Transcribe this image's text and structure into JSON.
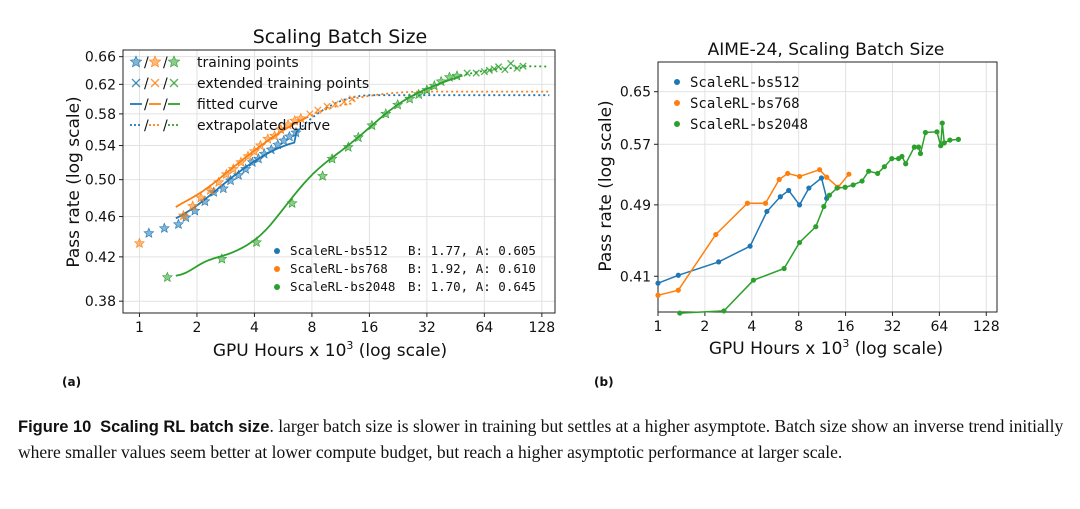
{
  "figure": {
    "caption_label": "Figure 10",
    "caption_title": "Scaling RL batch size",
    "caption_text": ". larger batch size is slower in training but settles at a higher asymptote. Batch size show an inverse trend initially where smaller values seem better at lower compute budget, but reach a higher asymptotic performance at larger scale."
  },
  "chart_data": [
    {
      "panel": "(a)",
      "type": "scatter",
      "title": "Scaling Batch Size",
      "xlabel": "GPU Hours x 10",
      "xlabel_sup": "3",
      "xlabel_suffix": " (log scale)",
      "ylabel": "Pass rate (log scale)",
      "xscale": "log",
      "yscale": "log",
      "xlim": [
        0.82,
        150
      ],
      "ylim": [
        0.37,
        0.67
      ],
      "xticks": [
        1,
        2,
        4,
        8,
        16,
        32,
        64,
        128
      ],
      "yticks": [
        0.38,
        0.42,
        0.46,
        0.5,
        0.54,
        0.58,
        0.62,
        0.66
      ],
      "ytick_labels": [
        "0.38",
        "0.42",
        "0.46",
        "0.50",
        "0.54",
        "0.58",
        "0.62",
        "0.66"
      ],
      "grid": true,
      "legend_style_pairs": [
        {
          "marker": "★/★/★",
          "label": "training points"
        },
        {
          "marker": "×/×/×",
          "label": "extended training points"
        },
        {
          "marker": "—/—/—",
          "label": "fitted curve"
        },
        {
          "marker": "--/--/--",
          "label": "extrapolated curve"
        }
      ],
      "series": [
        {
          "name": "ScaleRL-bs512",
          "params": "B: 1.77, A: 0.605",
          "color": "#1f77b4",
          "training_x": [
            1.12,
            1.35,
            1.6,
            1.75,
            1.95,
            2.2,
            2.45,
            2.75,
            3.0,
            3.3,
            3.6,
            3.9,
            4.2,
            4.5,
            4.9,
            5.3,
            5.7,
            6.1,
            6.6
          ],
          "training_y": [
            0.443,
            0.448,
            0.452,
            0.459,
            0.466,
            0.476,
            0.486,
            0.49,
            0.499,
            0.505,
            0.512,
            0.52,
            0.524,
            0.53,
            0.535,
            0.541,
            0.546,
            0.551,
            0.556
          ],
          "extended_x": [],
          "extended_y": [],
          "fit_x_range": [
            1.55,
            6.8
          ],
          "extrap_x_range": [
            6.8,
            140
          ],
          "A": 0.605
        },
        {
          "name": "ScaleRL-bs768",
          "params": "B: 1.92, A: 0.610",
          "color": "#ff7f0e",
          "training_x": [
            1.0,
            1.7,
            1.9,
            2.1,
            2.35,
            2.6,
            2.85,
            3.1,
            3.4,
            3.7,
            4.0,
            4.3,
            4.7,
            5.1,
            5.5,
            6.0,
            6.5,
            7.0
          ],
          "training_y": [
            0.433,
            0.461,
            0.471,
            0.48,
            0.488,
            0.497,
            0.506,
            0.512,
            0.52,
            0.527,
            0.533,
            0.54,
            0.548,
            0.552,
            0.56,
            0.566,
            0.571,
            0.574
          ],
          "extended_x": [
            7.8,
            8.6,
            9.6,
            10.6,
            11.8,
            13.0
          ],
          "extended_y": [
            0.58,
            0.585,
            0.59,
            0.593,
            0.596,
            0.6
          ],
          "fit_x_range": [
            1.55,
            7.5
          ],
          "extrap_x_range": [
            7.5,
            140
          ],
          "A": 0.61
        },
        {
          "name": "ScaleRL-bs2048",
          "params": "B: 1.70, A: 0.645",
          "color": "#2ca02c",
          "training_x": [
            1.4,
            2.7,
            4.1,
            6.3,
            9.1,
            10.2,
            12.4,
            14.0,
            16.5,
            19.5,
            22.5,
            26.0,
            29.0,
            32.0,
            35.0,
            38.0,
            42.0,
            46.0
          ],
          "training_y": [
            0.401,
            0.418,
            0.434,
            0.474,
            0.504,
            0.524,
            0.538,
            0.55,
            0.565,
            0.58,
            0.592,
            0.6,
            0.606,
            0.612,
            0.618,
            0.624,
            0.63,
            0.632
          ],
          "extended_x": [
            52,
            58,
            64,
            68,
            72,
            76,
            82,
            88,
            95,
            102
          ],
          "extended_y": [
            0.636,
            0.636,
            0.638,
            0.64,
            0.642,
            0.645,
            0.641,
            0.65,
            0.643,
            0.646
          ],
          "fit_x_range": [
            1.55,
            48
          ],
          "extrap_x_range": [
            48,
            140
          ],
          "A": 0.645
        }
      ]
    },
    {
      "panel": "(b)",
      "type": "line",
      "title": "AIME-24, Scaling Batch Size",
      "xlabel": "GPU Hours x 10",
      "xlabel_sup": "3",
      "xlabel_suffix": " (log scale)",
      "ylabel": "Pass rate (log scale)",
      "xscale": "log",
      "yscale": "log",
      "xlim": [
        1.0,
        150
      ],
      "ylim": [
        0.375,
        0.7
      ],
      "xticks": [
        1,
        2,
        4,
        8,
        16,
        32,
        64,
        128
      ],
      "yticks": [
        0.41,
        0.49,
        0.57,
        0.65
      ],
      "ytick_labels": [
        "0.41",
        "0.49",
        "0.57",
        "0.65"
      ],
      "grid": true,
      "legend": "upper left",
      "series": [
        {
          "name": "ScaleRL-bs512",
          "color": "#1f77b4",
          "x": [
            1.0,
            1.35,
            2.45,
            3.9,
            5.0,
            6.1,
            6.9,
            8.1,
            9.3,
            11.2,
            12.1
          ],
          "y": [
            0.403,
            0.411,
            0.425,
            0.442,
            0.482,
            0.5,
            0.508,
            0.49,
            0.511,
            0.524,
            0.498
          ]
        },
        {
          "name": "ScaleRL-bs768",
          "color": "#ff7f0e",
          "x": [
            1.0,
            1.35,
            2.35,
            3.75,
            4.9,
            6.0,
            6.8,
            8.1,
            10.9,
            12.1,
            14.3,
            16.8
          ],
          "y": [
            0.391,
            0.396,
            0.455,
            0.492,
            0.492,
            0.522,
            0.53,
            0.526,
            0.535,
            0.525,
            0.512,
            0.529
          ]
        },
        {
          "name": "ScaleRL-bs2048",
          "color": "#2ca02c",
          "x": [
            1.38,
            2.65,
            4.1,
            6.45,
            8.1,
            10.3,
            11.6,
            12.6,
            14.1,
            15.9,
            17.9,
            20.4,
            22.5,
            25.7,
            28.4,
            31.7,
            35.0,
            36.8,
            38.9,
            44.2,
            47.1,
            48.4,
            52.1,
            61.7,
            65.3,
            66.8,
            68.8,
            74.8,
            84.8
          ],
          "y": [
            0.374,
            0.376,
            0.406,
            0.418,
            0.446,
            0.464,
            0.488,
            0.502,
            0.511,
            0.512,
            0.515,
            0.52,
            0.533,
            0.53,
            0.539,
            0.55,
            0.55,
            0.553,
            0.543,
            0.566,
            0.566,
            0.557,
            0.587,
            0.588,
            0.568,
            0.601,
            0.572,
            0.576,
            0.577
          ]
        }
      ]
    }
  ]
}
